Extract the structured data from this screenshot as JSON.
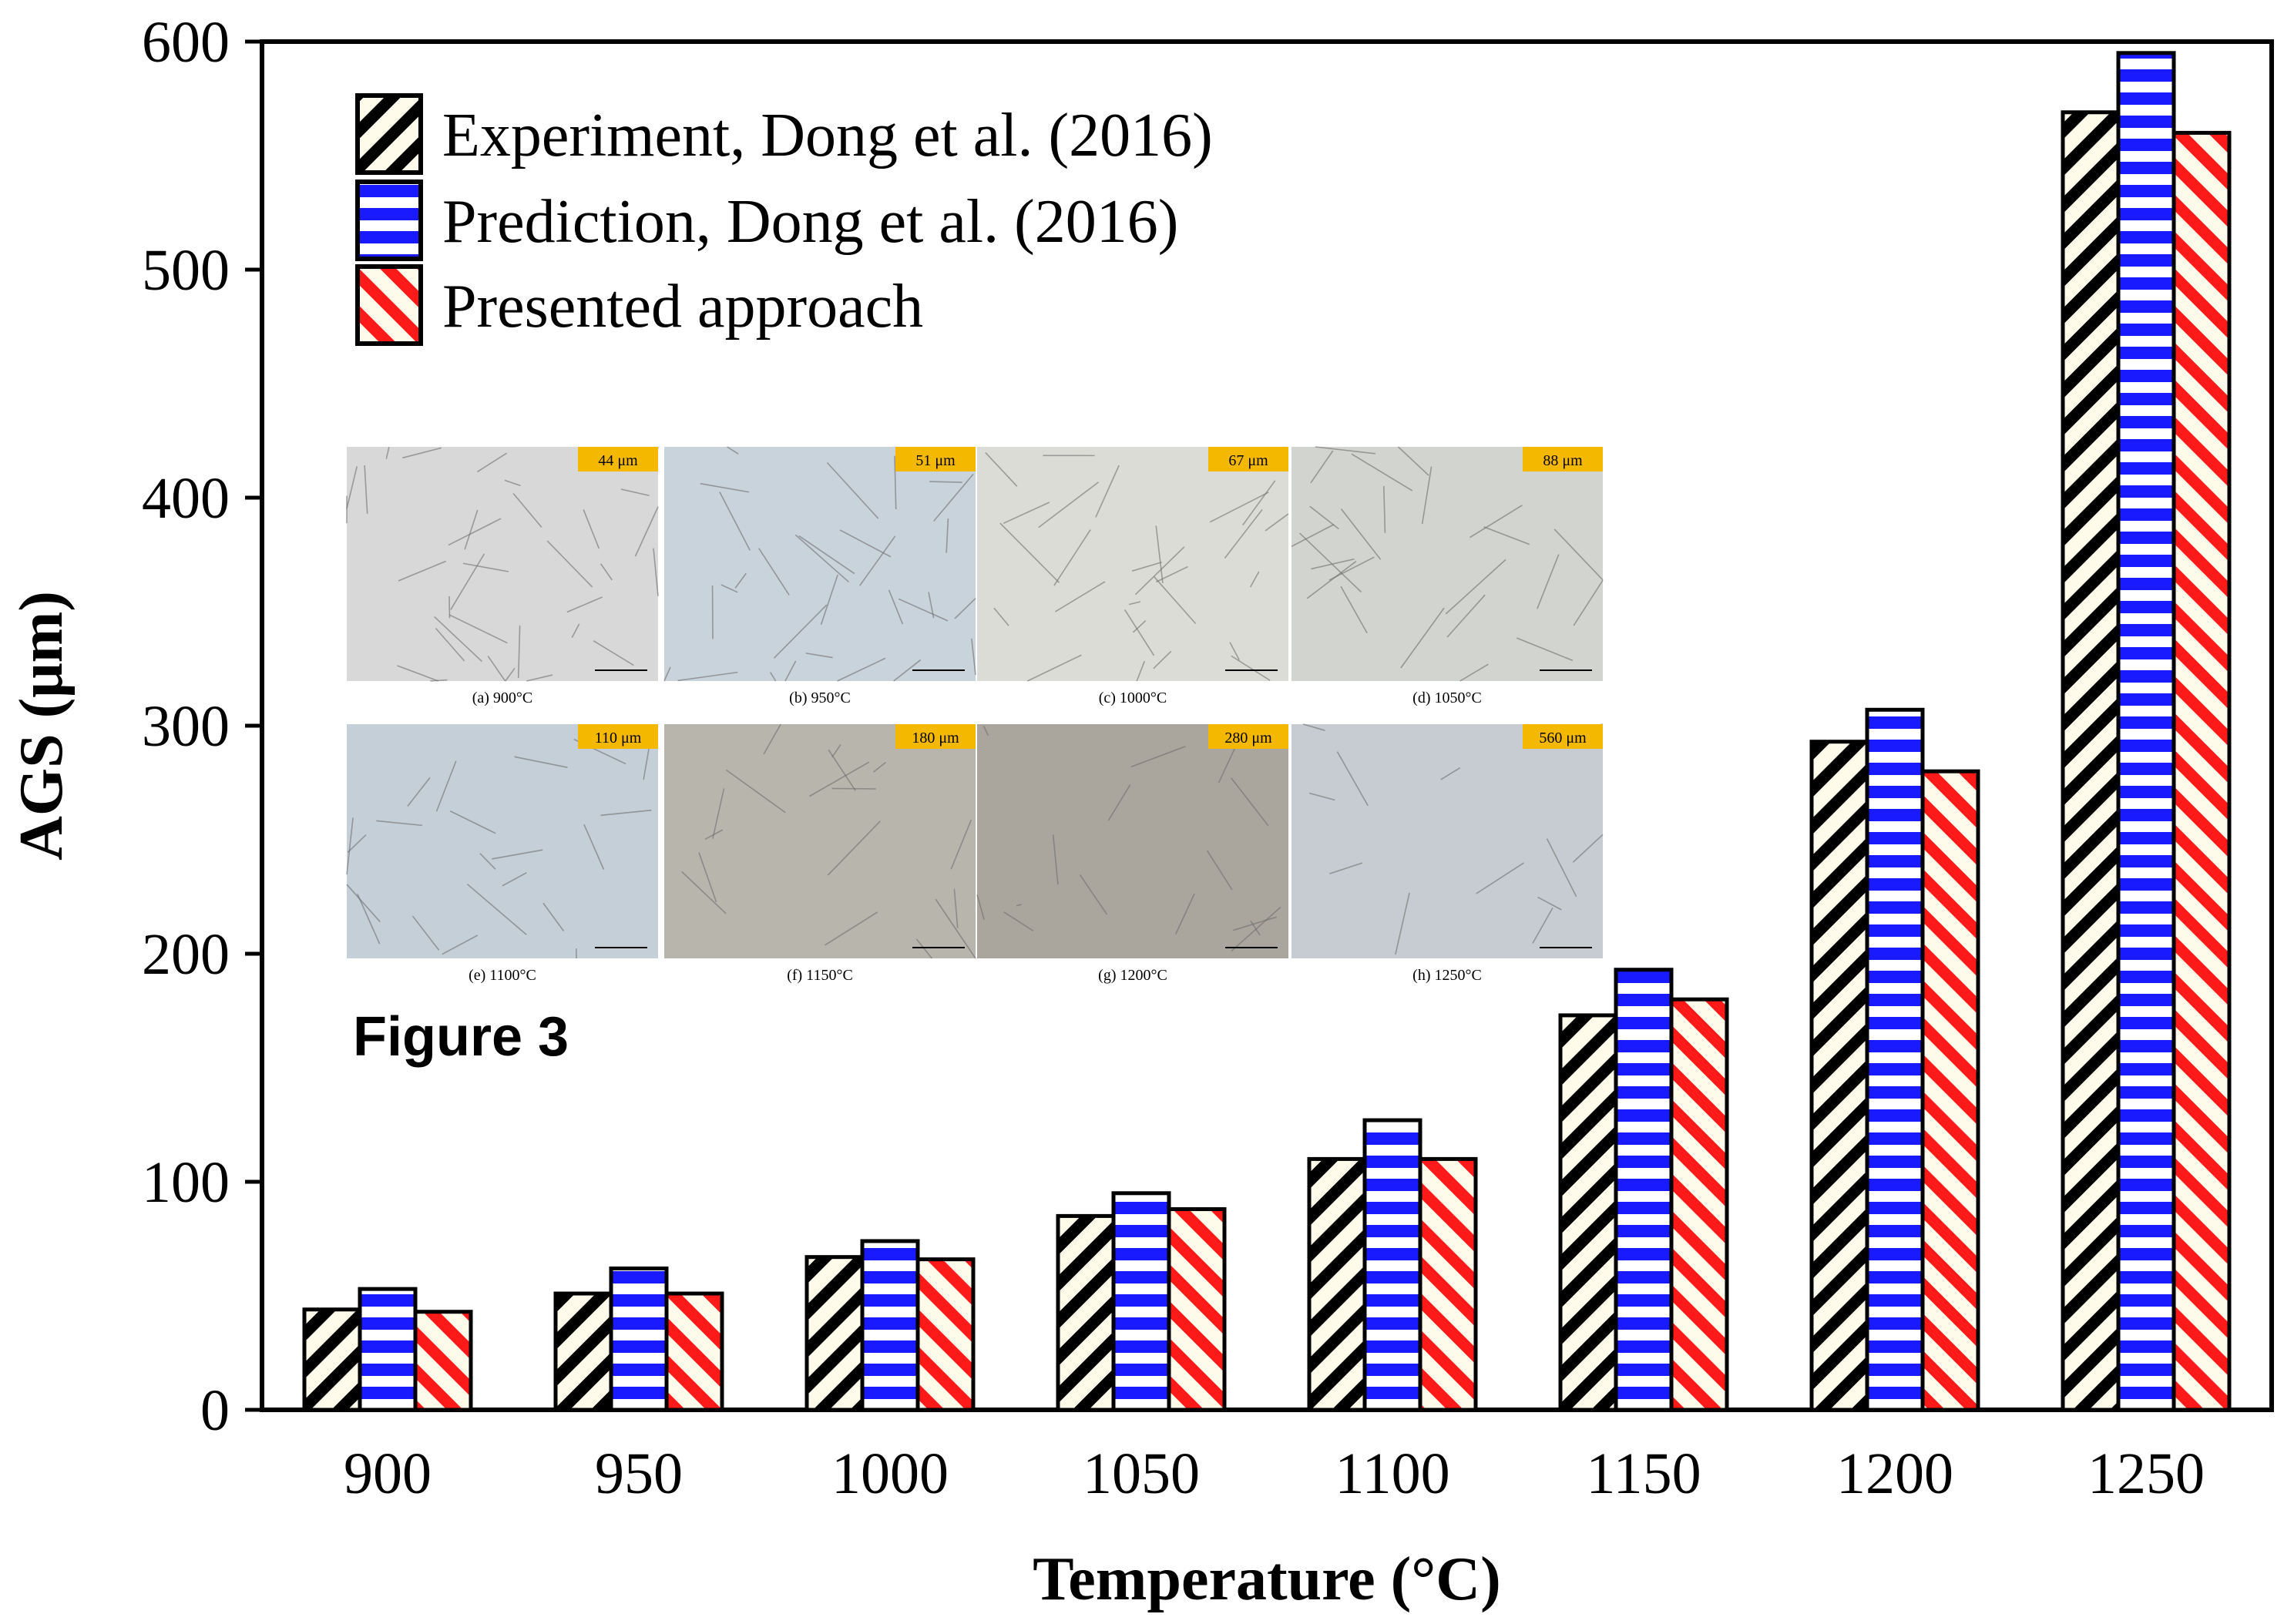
{
  "chart_data": {
    "type": "bar",
    "xlabel": "Temperature (°C)",
    "ylabel": "AGS (μm)",
    "ylim": [
      0,
      600
    ],
    "yticks": [
      0,
      100,
      200,
      300,
      400,
      500,
      600
    ],
    "categories": [
      "900",
      "950",
      "1000",
      "1050",
      "1100",
      "1150",
      "1200",
      "1250"
    ],
    "series": [
      {
        "name": "Experiment, Dong et al. (2016)",
        "values": [
          44,
          51,
          67,
          85,
          110,
          173,
          293,
          569
        ]
      },
      {
        "name": "Prediction, Dong et al. (2016)",
        "values": [
          53,
          62,
          74,
          95,
          127,
          193,
          307,
          595
        ]
      },
      {
        "name": "Presented approach",
        "values": [
          43,
          51,
          66,
          88,
          110,
          180,
          280,
          560
        ]
      }
    ],
    "legend_position": "top-left",
    "grid": false
  },
  "colors": {
    "experiment": "#000000",
    "prediction": "#1a1aff",
    "presented": "#ff1a1a"
  },
  "inset": {
    "figure_label": "Figure 3",
    "panels": [
      {
        "caption": "(a) 900°C",
        "badge": "44 μm"
      },
      {
        "caption": "(b) 950°C",
        "badge": "51 μm"
      },
      {
        "caption": "(c) 1000°C",
        "badge": "67 μm"
      },
      {
        "caption": "(d) 1050°C",
        "badge": "88 μm"
      },
      {
        "caption": "(e) 1100°C",
        "badge": "110 μm"
      },
      {
        "caption": "(f) 1150°C",
        "badge": "180 μm"
      },
      {
        "caption": "(g) 1200°C",
        "badge": "280 μm"
      },
      {
        "caption": "(h) 1250°C",
        "badge": "560 μm"
      }
    ]
  }
}
